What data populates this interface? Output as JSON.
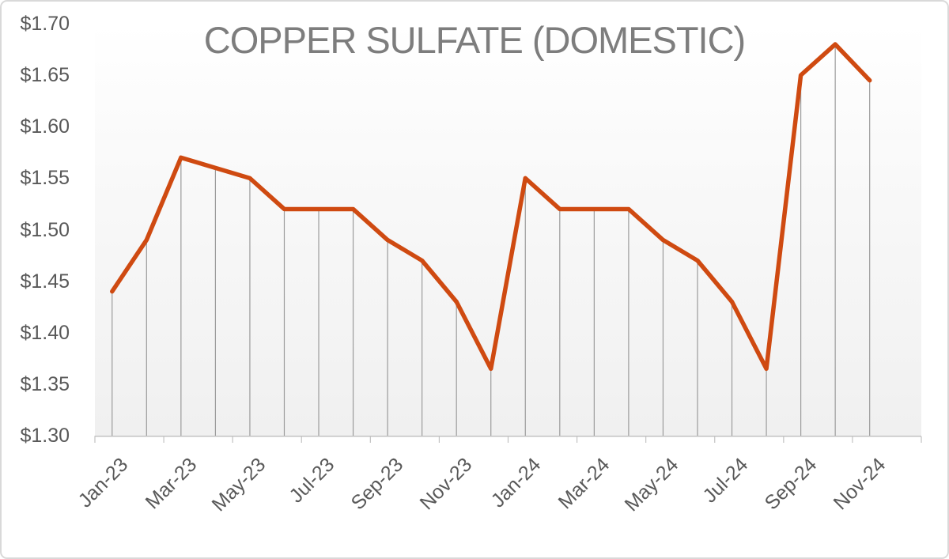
{
  "frame": {
    "background": "#ffffff",
    "border_color": "#d9d9d9"
  },
  "chart_data": {
    "type": "line",
    "title": "COPPER SULFATE (DOMESTIC)",
    "x": [
      "Jan-23",
      "Feb-23",
      "Mar-23",
      "Apr-23",
      "May-23",
      "Jun-23",
      "Jul-23",
      "Aug-23",
      "Sep-23",
      "Oct-23",
      "Nov-23",
      "Dec-23",
      "Jan-24",
      "Feb-24",
      "Mar-24",
      "Apr-24",
      "May-24",
      "Jun-24",
      "Jul-24",
      "Aug-24",
      "Sep-24",
      "Oct-24",
      "Nov-24"
    ],
    "values": [
      1.44,
      1.49,
      1.57,
      1.56,
      1.55,
      1.52,
      1.52,
      1.52,
      1.49,
      1.47,
      1.43,
      1.365,
      1.55,
      1.52,
      1.52,
      1.52,
      1.49,
      1.47,
      1.43,
      1.365,
      1.65,
      1.68,
      1.645
    ],
    "x_tick_labels": [
      "Jan-23",
      "Mar-23",
      "May-23",
      "Jul-23",
      "Sep-23",
      "Nov-23",
      "Jan-24",
      "Mar-24",
      "May-24",
      "Jul-24",
      "Sep-24",
      "Nov-24"
    ],
    "y_tick_labels": [
      "$1.30",
      "$1.35",
      "$1.40",
      "$1.45",
      "$1.50",
      "$1.55",
      "$1.60",
      "$1.65",
      "$1.70"
    ],
    "ylim": [
      1.3,
      1.7
    ],
    "x_slots": 24,
    "legend": "none",
    "grid": "vertical-drop-lines",
    "ylabel": "",
    "xlabel": "",
    "colors": {
      "line": "#cf4a11",
      "drop_line": "#9b9b9b",
      "axis_line": "#c2c2c2",
      "tick_label": "#595959",
      "title": "#7d7d7d",
      "plot_bg_top": "#ffffff",
      "plot_bg_bottom": "#f0f0f0"
    }
  }
}
